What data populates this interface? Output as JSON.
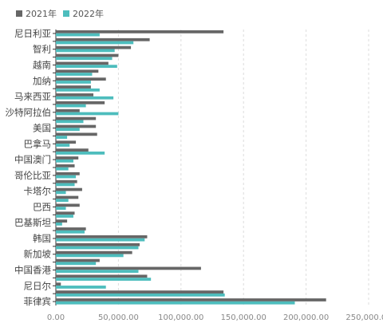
{
  "chart_data": {
    "type": "bar",
    "orientation": "horizontal",
    "title": "",
    "xlabel": "",
    "ylabel": "",
    "xlim": [
      0,
      250000
    ],
    "x_ticks": [
      "0.00",
      "50,000.00",
      "100,000.00",
      "150,000.00",
      "200,000.00",
      "250,000.00"
    ],
    "grid": "vertical-dashed",
    "legend_position": "top-left",
    "colors": {
      "2021年": "#666666",
      "2022年": "#4dbdbd"
    },
    "visible_category_labels": [
      "尼日利亚",
      "智利",
      "越南",
      "加纳",
      "马来西亚",
      "沙特阿拉伯",
      "美国",
      "巴拿马",
      "中国澳门",
      "哥伦比亚",
      "卡塔尔",
      "巴西",
      "巴基斯坦",
      "韩国",
      "新加坡",
      "中国香港",
      "尼日尔",
      "菲律宾"
    ],
    "rows": [
      {
        "label": "尼日利亚",
        "v2021": 134000,
        "v2022": 35000
      },
      {
        "label": "",
        "v2021": 75000,
        "v2022": 62000
      },
      {
        "label": "智利",
        "v2021": 60000,
        "v2022": 47000
      },
      {
        "label": "",
        "v2021": 50000,
        "v2022": 45000
      },
      {
        "label": "越南",
        "v2021": 42000,
        "v2022": 49000
      },
      {
        "label": "",
        "v2021": 34000,
        "v2022": 29000
      },
      {
        "label": "加纳",
        "v2021": 40000,
        "v2022": 28000
      },
      {
        "label": "",
        "v2021": 28000,
        "v2022": 35000
      },
      {
        "label": "马来西亚",
        "v2021": 30000,
        "v2022": 46000
      },
      {
        "label": "",
        "v2021": 39000,
        "v2022": 24000
      },
      {
        "label": "沙特阿拉伯",
        "v2021": 19000,
        "v2022": 50000
      },
      {
        "label": "",
        "v2021": 32000,
        "v2022": 22000
      },
      {
        "label": "美国",
        "v2021": 32000,
        "v2022": 19000
      },
      {
        "label": "",
        "v2021": 33000,
        "v2022": 9000
      },
      {
        "label": "巴拿马",
        "v2021": 16000,
        "v2022": 11000
      },
      {
        "label": "",
        "v2021": 26000,
        "v2022": 39000
      },
      {
        "label": "中国澳门",
        "v2021": 18000,
        "v2022": 14000
      },
      {
        "label": "",
        "v2021": 15000,
        "v2022": 10000
      },
      {
        "label": "哥伦比亚",
        "v2021": 19000,
        "v2022": 16000
      },
      {
        "label": "",
        "v2021": 17000,
        "v2022": 15000
      },
      {
        "label": "卡塔尔",
        "v2021": 21000,
        "v2022": 8000
      },
      {
        "label": "",
        "v2021": 18000,
        "v2022": 10000
      },
      {
        "label": "巴西",
        "v2021": 19000,
        "v2022": 8000
      },
      {
        "label": "",
        "v2021": 15000,
        "v2022": 14000
      },
      {
        "label": "巴基斯坦",
        "v2021": 9000,
        "v2022": 5000
      },
      {
        "label": "",
        "v2021": 24000,
        "v2022": 23000
      },
      {
        "label": "韩国",
        "v2021": 73000,
        "v2022": 71000
      },
      {
        "label": "",
        "v2021": 67000,
        "v2022": 66000
      },
      {
        "label": "新加坡",
        "v2021": 61000,
        "v2022": 54000
      },
      {
        "label": "",
        "v2021": 35000,
        "v2022": 32000
      },
      {
        "label": "中国香港",
        "v2021": 116000,
        "v2022": 66000
      },
      {
        "label": "",
        "v2021": 73000,
        "v2022": 76000
      },
      {
        "label": "尼日尔",
        "v2021": 4000,
        "v2022": 40000
      },
      {
        "label": "",
        "v2021": 134000,
        "v2022": 135000
      },
      {
        "label": "菲律宾",
        "v2021": 216000,
        "v2022": 191000
      }
    ]
  }
}
